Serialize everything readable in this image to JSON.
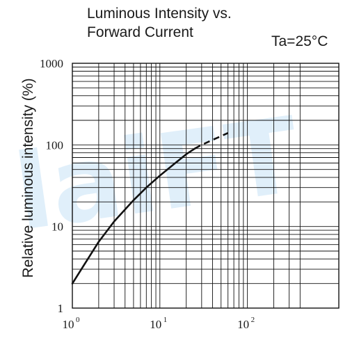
{
  "chart_data": {
    "type": "line",
    "title_lines": [
      "Luminous Intensity vs.",
      "Forward Current"
    ],
    "condition": "Ta=25°C",
    "ylabel": "Relative luminous intensity  (%)",
    "xlabel": "",
    "x_scale": "log",
    "y_scale": "log",
    "xlim": [
      1,
      400
    ],
    "ylim": [
      1,
      1000
    ],
    "grid": true,
    "y_ticks": [
      "1",
      "10",
      "100",
      "1000"
    ],
    "x_ticks": [
      {
        "base": "10",
        "exp": "0"
      },
      {
        "base": "10",
        "exp": "1"
      },
      {
        "base": "10",
        "exp": "2"
      }
    ],
    "series": [
      {
        "style": "solid",
        "x": [
          1,
          1.5,
          2,
          3,
          5,
          7,
          10,
          15,
          20,
          25
        ],
        "y": [
          2,
          4,
          6.5,
          11.5,
          21,
          30,
          42,
          60,
          77,
          90
        ]
      },
      {
        "style": "dashed",
        "x": [
          25,
          30,
          40,
          50,
          60
        ],
        "y": [
          90,
          100,
          115,
          128,
          140
        ]
      }
    ]
  },
  "watermark_text": "laiFT"
}
